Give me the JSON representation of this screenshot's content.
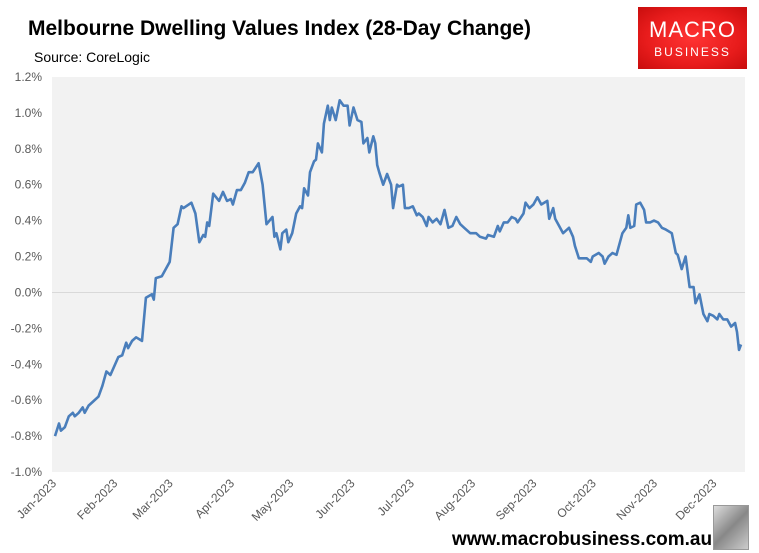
{
  "header": {
    "title": "Melbourne Dwelling Values Index (28-Day Change)",
    "source": "Source: CoreLogic"
  },
  "logo": {
    "line1": "MACRO",
    "line2": "BUSINESS"
  },
  "footer": {
    "url": "www.macrobusiness.com.au"
  },
  "colors": {
    "line": "#4a7ebb",
    "plot_bg": "#f2f2f2",
    "logo_red": "#e81c1c",
    "zero_line": "#d9d9d9"
  },
  "chart_data": {
    "type": "line",
    "title": "Melbourne Dwelling Values Index (28-Day Change)",
    "ylim": [
      -1.0,
      1.2
    ],
    "yticks": [
      "-1.0%",
      "-0.8%",
      "-0.6%",
      "-0.4%",
      "-0.2%",
      "0.0%",
      "0.2%",
      "0.4%",
      "0.6%",
      "0.8%",
      "1.0%",
      "1.2%"
    ],
    "ytick_values": [
      -1.0,
      -0.8,
      -0.6,
      -0.4,
      -0.2,
      0,
      0.2,
      0.4,
      0.6,
      0.8,
      1.0,
      1.2
    ],
    "xlim": [
      "2023-01-01",
      "2023-12-14"
    ],
    "xticks": [
      "Jan-2023",
      "Feb-2023",
      "Mar-2023",
      "Apr-2023",
      "May-2023",
      "Jun-2023",
      "Jul-2023",
      "Aug-2023",
      "Sep-2023",
      "Oct-2023",
      "Nov-2023",
      "Dec-2023"
    ],
    "xtick_dates": [
      "2023-01-01",
      "2023-02-01",
      "2023-03-01",
      "2023-04-01",
      "2023-05-01",
      "2023-06-01",
      "2023-07-01",
      "2023-08-01",
      "2023-09-01",
      "2023-10-01",
      "2023-11-01",
      "2023-12-01"
    ],
    "grid": false,
    "points": [
      [
        "2023-01-01",
        -0.8
      ],
      [
        "2023-01-03",
        -0.73
      ],
      [
        "2023-01-04",
        -0.77
      ],
      [
        "2023-01-06",
        -0.75
      ],
      [
        "2023-01-08",
        -0.69
      ],
      [
        "2023-01-10",
        -0.67
      ],
      [
        "2023-01-11",
        -0.69
      ],
      [
        "2023-01-13",
        -0.67
      ],
      [
        "2023-01-15",
        -0.64
      ],
      [
        "2023-01-16",
        -0.67
      ],
      [
        "2023-01-18",
        -0.63
      ],
      [
        "2023-01-20",
        -0.61
      ],
      [
        "2023-01-23",
        -0.58
      ],
      [
        "2023-01-25",
        -0.52
      ],
      [
        "2023-01-27",
        -0.44
      ],
      [
        "2023-01-29",
        -0.46
      ],
      [
        "2023-02-02",
        -0.36
      ],
      [
        "2023-02-04",
        -0.35
      ],
      [
        "2023-02-06",
        -0.28
      ],
      [
        "2023-02-07",
        -0.31
      ],
      [
        "2023-02-09",
        -0.27
      ],
      [
        "2023-02-11",
        -0.25
      ],
      [
        "2023-02-14",
        -0.27
      ],
      [
        "2023-02-16",
        -0.03
      ],
      [
        "2023-02-19",
        -0.01
      ],
      [
        "2023-02-20",
        -0.04
      ],
      [
        "2023-02-21",
        0.08
      ],
      [
        "2023-02-24",
        0.09
      ],
      [
        "2023-02-28",
        0.17
      ],
      [
        "2023-03-02",
        0.36
      ],
      [
        "2023-03-04",
        0.38
      ],
      [
        "2023-03-06",
        0.48
      ],
      [
        "2023-03-07",
        0.47
      ],
      [
        "2023-03-11",
        0.5
      ],
      [
        "2023-03-13",
        0.44
      ],
      [
        "2023-03-15",
        0.28
      ],
      [
        "2023-03-17",
        0.32
      ],
      [
        "2023-03-18",
        0.31
      ],
      [
        "2023-03-19",
        0.39
      ],
      [
        "2023-03-20",
        0.37
      ],
      [
        "2023-03-22",
        0.55
      ],
      [
        "2023-03-25",
        0.51
      ],
      [
        "2023-03-27",
        0.56
      ],
      [
        "2023-03-29",
        0.51
      ],
      [
        "2023-03-31",
        0.52
      ],
      [
        "2023-04-01",
        0.49
      ],
      [
        "2023-04-03",
        0.57
      ],
      [
        "2023-04-05",
        0.57
      ],
      [
        "2023-04-07",
        0.61
      ],
      [
        "2023-04-09",
        0.67
      ],
      [
        "2023-04-11",
        0.67
      ],
      [
        "2023-04-14",
        0.72
      ],
      [
        "2023-04-16",
        0.6
      ],
      [
        "2023-04-18",
        0.38
      ],
      [
        "2023-04-21",
        0.42
      ],
      [
        "2023-04-22",
        0.31
      ],
      [
        "2023-04-23",
        0.33
      ],
      [
        "2023-04-25",
        0.24
      ],
      [
        "2023-04-26",
        0.33
      ],
      [
        "2023-04-28",
        0.35
      ],
      [
        "2023-04-29",
        0.28
      ],
      [
        "2023-05-01",
        0.33
      ],
      [
        "2023-05-03",
        0.44
      ],
      [
        "2023-05-05",
        0.48
      ],
      [
        "2023-05-06",
        0.47
      ],
      [
        "2023-05-07",
        0.58
      ],
      [
        "2023-05-09",
        0.54
      ],
      [
        "2023-05-10",
        0.67
      ],
      [
        "2023-05-12",
        0.73
      ],
      [
        "2023-05-13",
        0.74
      ],
      [
        "2023-05-14",
        0.83
      ],
      [
        "2023-05-16",
        0.78
      ],
      [
        "2023-05-17",
        0.94
      ],
      [
        "2023-05-19",
        1.04
      ],
      [
        "2023-05-20",
        0.96
      ],
      [
        "2023-05-21",
        1.03
      ],
      [
        "2023-05-23",
        0.96
      ],
      [
        "2023-05-25",
        1.07
      ],
      [
        "2023-05-27",
        1.04
      ],
      [
        "2023-05-29",
        1.04
      ],
      [
        "2023-05-30",
        0.93
      ],
      [
        "2023-06-01",
        1.03
      ],
      [
        "2023-06-03",
        0.96
      ],
      [
        "2023-06-05",
        0.95
      ],
      [
        "2023-06-06",
        0.83
      ],
      [
        "2023-06-08",
        0.86
      ],
      [
        "2023-06-09",
        0.78
      ],
      [
        "2023-06-11",
        0.87
      ],
      [
        "2023-06-12",
        0.83
      ],
      [
        "2023-06-13",
        0.71
      ],
      [
        "2023-06-14",
        0.67
      ],
      [
        "2023-06-16",
        0.6
      ],
      [
        "2023-06-18",
        0.66
      ],
      [
        "2023-06-20",
        0.6
      ],
      [
        "2023-06-21",
        0.47
      ],
      [
        "2023-06-23",
        0.6
      ],
      [
        "2023-06-24",
        0.59
      ],
      [
        "2023-06-26",
        0.6
      ],
      [
        "2023-06-27",
        0.47
      ],
      [
        "2023-06-29",
        0.47
      ],
      [
        "2023-07-01",
        0.48
      ],
      [
        "2023-07-03",
        0.43
      ],
      [
        "2023-07-04",
        0.44
      ],
      [
        "2023-07-06",
        0.42
      ],
      [
        "2023-07-08",
        0.37
      ],
      [
        "2023-07-09",
        0.42
      ],
      [
        "2023-07-11",
        0.39
      ],
      [
        "2023-07-13",
        0.41
      ],
      [
        "2023-07-15",
        0.38
      ],
      [
        "2023-07-17",
        0.46
      ],
      [
        "2023-07-19",
        0.36
      ],
      [
        "2023-07-21",
        0.37
      ],
      [
        "2023-07-23",
        0.42
      ],
      [
        "2023-07-25",
        0.38
      ],
      [
        "2023-07-27",
        0.36
      ],
      [
        "2023-07-30",
        0.33
      ],
      [
        "2023-08-02",
        0.33
      ],
      [
        "2023-08-04",
        0.31
      ],
      [
        "2023-08-07",
        0.3
      ],
      [
        "2023-08-08",
        0.32
      ],
      [
        "2023-08-11",
        0.31
      ],
      [
        "2023-08-13",
        0.37
      ],
      [
        "2023-08-14",
        0.34
      ],
      [
        "2023-08-16",
        0.39
      ],
      [
        "2023-08-18",
        0.39
      ],
      [
        "2023-08-20",
        0.42
      ],
      [
        "2023-08-22",
        0.41
      ],
      [
        "2023-08-23",
        0.39
      ],
      [
        "2023-08-26",
        0.44
      ],
      [
        "2023-08-27",
        0.5
      ],
      [
        "2023-08-29",
        0.47
      ],
      [
        "2023-08-31",
        0.49
      ],
      [
        "2023-09-02",
        0.53
      ],
      [
        "2023-09-04",
        0.49
      ],
      [
        "2023-09-07",
        0.51
      ],
      [
        "2023-09-08",
        0.41
      ],
      [
        "2023-09-10",
        0.47
      ],
      [
        "2023-09-11",
        0.41
      ],
      [
        "2023-09-15",
        0.33
      ],
      [
        "2023-09-18",
        0.36
      ],
      [
        "2023-09-20",
        0.31
      ],
      [
        "2023-09-21",
        0.26
      ],
      [
        "2023-09-23",
        0.19
      ],
      [
        "2023-09-27",
        0.19
      ],
      [
        "2023-09-29",
        0.17
      ],
      [
        "2023-09-30",
        0.2
      ],
      [
        "2023-10-03",
        0.22
      ],
      [
        "2023-10-05",
        0.2
      ],
      [
        "2023-10-06",
        0.16
      ],
      [
        "2023-10-08",
        0.2
      ],
      [
        "2023-10-10",
        0.22
      ],
      [
        "2023-10-12",
        0.21
      ],
      [
        "2023-10-15",
        0.33
      ],
      [
        "2023-10-17",
        0.36
      ],
      [
        "2023-10-18",
        0.43
      ],
      [
        "2023-10-19",
        0.36
      ],
      [
        "2023-10-21",
        0.37
      ],
      [
        "2023-10-22",
        0.49
      ],
      [
        "2023-10-24",
        0.5
      ],
      [
        "2023-10-26",
        0.46
      ],
      [
        "2023-10-27",
        0.39
      ],
      [
        "2023-10-29",
        0.39
      ],
      [
        "2023-10-31",
        0.4
      ],
      [
        "2023-11-02",
        0.39
      ],
      [
        "2023-11-04",
        0.36
      ],
      [
        "2023-11-06",
        0.35
      ],
      [
        "2023-11-09",
        0.33
      ],
      [
        "2023-11-11",
        0.22
      ],
      [
        "2023-11-12",
        0.21
      ],
      [
        "2023-11-14",
        0.13
      ],
      [
        "2023-11-16",
        0.2
      ],
      [
        "2023-11-18",
        0.03
      ],
      [
        "2023-11-20",
        0.03
      ],
      [
        "2023-11-21",
        -0.06
      ],
      [
        "2023-11-23",
        -0.01
      ],
      [
        "2023-11-25",
        -0.12
      ],
      [
        "2023-11-27",
        -0.16
      ],
      [
        "2023-11-28",
        -0.12
      ],
      [
        "2023-11-30",
        -0.13
      ],
      [
        "2023-12-02",
        -0.15
      ],
      [
        "2023-12-03",
        -0.12
      ],
      [
        "2023-12-05",
        -0.15
      ],
      [
        "2023-12-07",
        -0.15
      ],
      [
        "2023-12-09",
        -0.19
      ],
      [
        "2023-12-11",
        -0.17
      ],
      [
        "2023-12-12",
        -0.22
      ],
      [
        "2023-12-13",
        -0.32
      ],
      [
        "2023-12-14",
        -0.29
      ]
    ]
  }
}
